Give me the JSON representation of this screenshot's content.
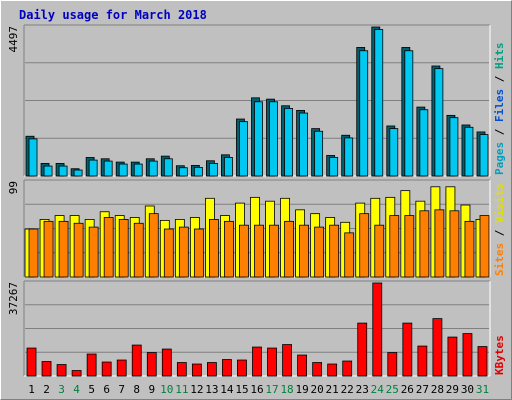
{
  "title": "Daily usage for March 2018",
  "chart_data": [
    {
      "type": "bar",
      "panel": "hits-files-pages",
      "y_max_label": "4497",
      "ylim": [
        0,
        4497
      ],
      "legend": [
        {
          "label": "Pages",
          "color": "#00a0c0"
        },
        {
          "label": "Files",
          "color": "#0050d0"
        },
        {
          "label": "Hits",
          "color": "#00a080"
        }
      ],
      "categories": [
        "1",
        "2",
        "3",
        "4",
        "5",
        "6",
        "7",
        "8",
        "9",
        "10",
        "11",
        "12",
        "13",
        "14",
        "15",
        "16",
        "17",
        "18",
        "19",
        "20",
        "21",
        "22",
        "23",
        "24",
        "25",
        "26",
        "27",
        "28",
        "29",
        "30",
        "31"
      ],
      "series": [
        {
          "name": "Hits",
          "color": "#006070",
          "values": [
            1200,
            380,
            380,
            220,
            560,
            520,
            420,
            420,
            520,
            600,
            310,
            320,
            460,
            640,
            1720,
            2360,
            2320,
            2120,
            1980,
            1430,
            620,
            1230,
            3880,
            4497,
            1510,
            3880,
            2080,
            3320,
            1830,
            1540,
            1330
          ]
        },
        {
          "name": "Files",
          "color": "#00c8f0",
          "values": [
            1120,
            300,
            300,
            180,
            480,
            450,
            360,
            360,
            450,
            520,
            250,
            260,
            380,
            560,
            1640,
            2240,
            2240,
            2040,
            1900,
            1350,
            560,
            1150,
            3780,
            4420,
            1430,
            3780,
            2000,
            3240,
            1760,
            1470,
            1250
          ]
        }
      ]
    },
    {
      "type": "bar",
      "panel": "visits-sites",
      "y_max_label": "99",
      "ylim": [
        0,
        99
      ],
      "legend": [
        {
          "label": "Sites",
          "color": "#ff8000"
        },
        {
          "label": "Visits",
          "color": "#e0e000"
        }
      ],
      "categories": [
        "1",
        "2",
        "3",
        "4",
        "5",
        "6",
        "7",
        "8",
        "9",
        "10",
        "11",
        "12",
        "13",
        "14",
        "15",
        "16",
        "17",
        "18",
        "19",
        "20",
        "21",
        "22",
        "23",
        "24",
        "25",
        "26",
        "27",
        "28",
        "29",
        "30",
        "31"
      ],
      "series": [
        {
          "name": "Visits",
          "color": "#ffff00",
          "values": [
            50,
            60,
            64,
            64,
            60,
            68,
            64,
            62,
            74,
            59,
            60,
            62,
            82,
            64,
            77,
            83,
            79,
            82,
            70,
            66,
            62,
            57,
            77,
            82,
            83,
            90,
            79,
            94,
            94,
            75,
            60
          ]
        },
        {
          "name": "Sites",
          "color": "#ff8000",
          "values": [
            50,
            58,
            58,
            56,
            52,
            62,
            60,
            56,
            66,
            50,
            52,
            50,
            60,
            58,
            54,
            54,
            54,
            58,
            54,
            52,
            54,
            46,
            66,
            54,
            64,
            64,
            69,
            70,
            69,
            58,
            64
          ]
        }
      ]
    },
    {
      "type": "bar",
      "panel": "kbytes",
      "y_max_label": "37267",
      "ylim": [
        0,
        37267
      ],
      "legend": [
        {
          "label": "KBytes",
          "color": "#e00000"
        }
      ],
      "categories": [
        "1",
        "2",
        "3",
        "4",
        "5",
        "6",
        "7",
        "8",
        "9",
        "10",
        "11",
        "12",
        "13",
        "14",
        "15",
        "16",
        "17",
        "18",
        "19",
        "20",
        "21",
        "22",
        "23",
        "24",
        "25",
        "26",
        "27",
        "28",
        "29",
        "30",
        "31"
      ],
      "series": [
        {
          "name": "KBytes",
          "color": "#ff0000",
          "values": [
            11200,
            5800,
            4600,
            2200,
            8800,
            5600,
            6400,
            12400,
            9400,
            10800,
            5400,
            4800,
            5400,
            6600,
            6400,
            11600,
            11200,
            12600,
            8400,
            5400,
            4800,
            6000,
            21200,
            37267,
            9400,
            21200,
            12000,
            23000,
            15600,
            17000,
            11800
          ]
        }
      ]
    }
  ],
  "day_label_colors": [
    "#000000",
    "#000000",
    "#008040",
    "#008040",
    "#000000",
    "#000000",
    "#000000",
    "#000000",
    "#000000",
    "#008040",
    "#008040",
    "#000000",
    "#000000",
    "#000000",
    "#000000",
    "#000000",
    "#008040",
    "#008040",
    "#000000",
    "#000000",
    "#000000",
    "#000000",
    "#000000",
    "#008040",
    "#008040",
    "#000000",
    "#000000",
    "#000000",
    "#000000",
    "#000000",
    "#008040"
  ]
}
